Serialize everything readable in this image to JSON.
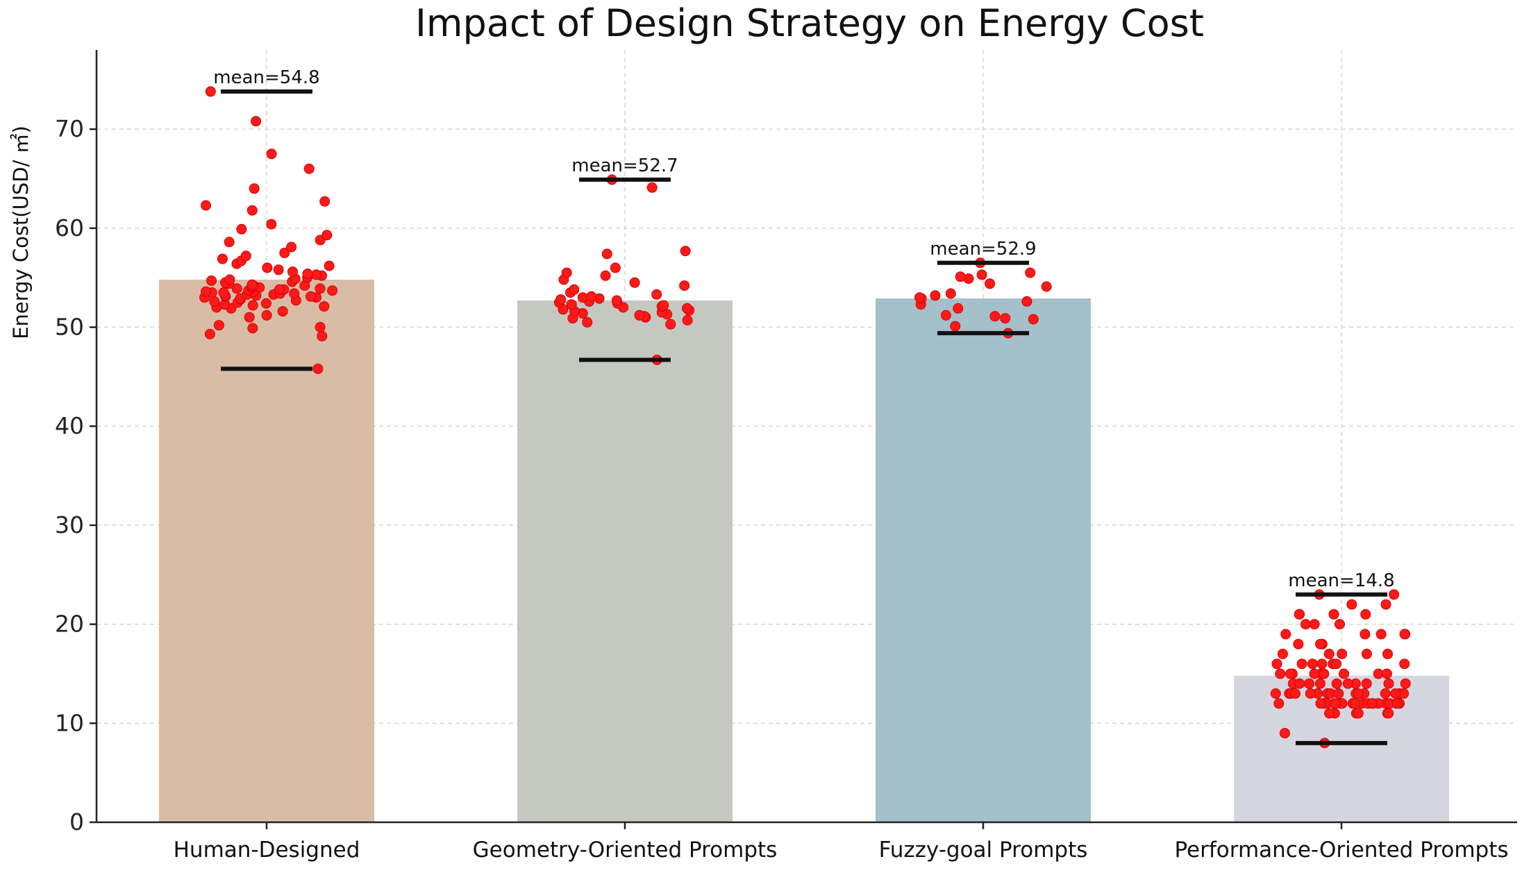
{
  "chart_data": {
    "type": "bar",
    "title": "Impact of Design Strategy on Energy Cost",
    "xlabel": "",
    "ylabel": "Energy Cost(USD/ ㎡)",
    "ylim": [
      0,
      78
    ],
    "yticks": [
      0,
      10,
      20,
      30,
      40,
      50,
      60,
      70
    ],
    "grid": true,
    "categories": [
      "Human-Designed",
      "Geometry-Oriented Prompts",
      "Fuzzy-goal Prompts",
      "Performance-Oriented Prompts"
    ],
    "values": [
      54.8,
      52.7,
      52.9,
      14.8
    ],
    "mean_labels": [
      "mean=54.8",
      "mean=52.7",
      "mean=52.9",
      "mean=14.8"
    ],
    "ranges": [
      [
        45.8,
        73.8
      ],
      [
        46.7,
        64.9
      ],
      [
        49.4,
        56.5
      ],
      [
        8.0,
        23.0
      ]
    ],
    "bar_colors": [
      "#d8bca6",
      "#c4c8c1",
      "#a5c0ca",
      "#d6d6e0"
    ],
    "point_color": "#ff1a1a",
    "points": [
      [
        45.8,
        49.1,
        49.3,
        49.9,
        50.0,
        50.2,
        51.0,
        51.2,
        51.6,
        51.9,
        52.0,
        52.1,
        52.2,
        52.3,
        52.4,
        52.5,
        52.6,
        52.7,
        52.8,
        52.9,
        53.0,
        53.0,
        53.1,
        53.1,
        53.2,
        53.2,
        53.3,
        53.3,
        53.4,
        53.4,
        53.5,
        53.5,
        53.6,
        53.6,
        53.7,
        53.7,
        53.8,
        53.8,
        53.9,
        53.9,
        54.0,
        54.0,
        54.1,
        54.2,
        54.2,
        54.3,
        54.4,
        54.5,
        54.6,
        54.7,
        54.8,
        54.9,
        55.0,
        55.2,
        55.3,
        55.4,
        55.6,
        55.8,
        56.0,
        56.2,
        56.4,
        56.7,
        56.9,
        57.2,
        57.5,
        58.1,
        58.6,
        58.8,
        59.3,
        59.9,
        60.4,
        61.8,
        62.3,
        62.7,
        64.0,
        66.0,
        67.5,
        70.8,
        73.8
      ],
      [
        46.7,
        50.3,
        50.5,
        50.7,
        50.9,
        51.0,
        51.1,
        51.2,
        51.3,
        51.4,
        51.5,
        51.6,
        51.7,
        51.8,
        51.9,
        52.0,
        52.1,
        52.2,
        52.3,
        52.4,
        52.5,
        52.6,
        52.7,
        52.8,
        52.9,
        53.0,
        53.1,
        53.3,
        53.5,
        53.8,
        54.2,
        54.5,
        54.8,
        55.2,
        55.5,
        56.0,
        57.4,
        57.7,
        64.1,
        64.9
      ],
      [
        49.4,
        50.1,
        50.8,
        50.9,
        51.1,
        51.2,
        51.9,
        52.3,
        52.6,
        52.9,
        53.0,
        53.2,
        53.4,
        54.1,
        54.4,
        54.9,
        55.1,
        55.3,
        55.5,
        56.5
      ],
      [
        8.0,
        9.0,
        11.0,
        11.0,
        11.0,
        11.0,
        11.0,
        11.0,
        12.0,
        12.0,
        12.0,
        12.0,
        12.0,
        12.0,
        12.0,
        12.0,
        12.0,
        12.0,
        12.0,
        12.0,
        12.0,
        12.0,
        12.0,
        12.0,
        12.0,
        12.0,
        12.0,
        12.0,
        13.0,
        13.0,
        13.0,
        13.0,
        13.0,
        13.0,
        13.0,
        13.0,
        13.0,
        13.0,
        13.0,
        13.0,
        13.0,
        13.0,
        13.0,
        13.0,
        14.0,
        14.0,
        14.0,
        14.0,
        14.0,
        14.0,
        14.0,
        14.0,
        14.0,
        14.0,
        15.0,
        15.0,
        15.0,
        15.0,
        15.0,
        15.0,
        15.0,
        15.0,
        15.0,
        16.0,
        16.0,
        16.0,
        16.0,
        16.0,
        16.0,
        16.0,
        17.0,
        17.0,
        17.0,
        17.0,
        17.0,
        18.0,
        18.0,
        18.0,
        19.0,
        19.0,
        19.0,
        19.0,
        19.0,
        20.0,
        20.0,
        20.0,
        21.0,
        21.0,
        21.0,
        21.0,
        22.0,
        22.0,
        23.0,
        23.0
      ]
    ]
  }
}
